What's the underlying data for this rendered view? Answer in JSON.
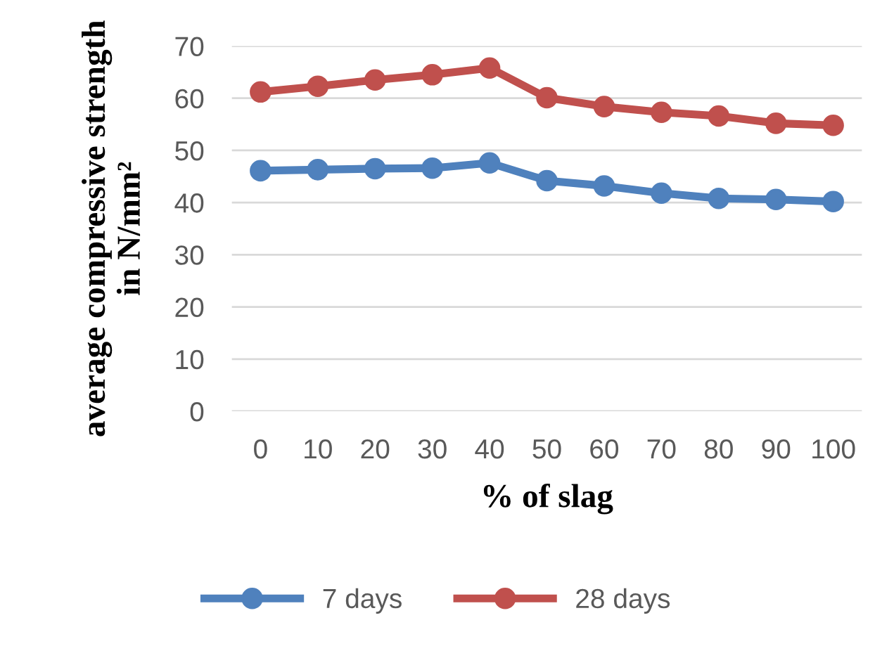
{
  "chart_data": {
    "type": "line",
    "xlabel": "% of slag",
    "ylabel": "average compressive strength\nin N/mm²",
    "categories": [
      "0",
      "10",
      "20",
      "30",
      "40",
      "50",
      "60",
      "70",
      "80",
      "90",
      "100"
    ],
    "series": [
      {
        "name": "7 days",
        "color": "#4f81bd",
        "values": [
          46.1,
          46.3,
          46.5,
          46.6,
          47.6,
          44.2,
          43.2,
          41.8,
          40.8,
          40.6,
          40.2
        ]
      },
      {
        "name": "28 days",
        "color": "#c0504d",
        "values": [
          61.2,
          62.3,
          63.5,
          64.5,
          65.8,
          60.1,
          58.4,
          57.3,
          56.6,
          55.2,
          54.8
        ]
      }
    ],
    "ylim": [
      0,
      70
    ],
    "yticks": [
      0,
      10,
      20,
      30,
      40,
      50,
      60,
      70
    ],
    "grid": "y",
    "legend": "bottom",
    "marker": "circle",
    "line_style": "solid"
  }
}
